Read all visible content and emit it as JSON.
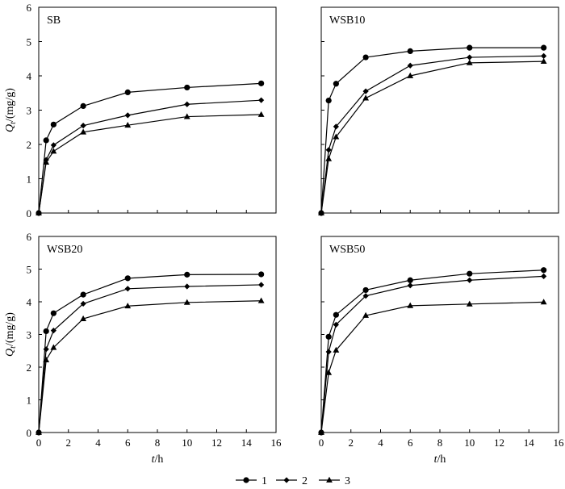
{
  "chart_data": [
    {
      "type": "line",
      "title": "SB",
      "xlabel": "",
      "ylabel": "Q_t/(mg/g)",
      "xlim": [
        0,
        16
      ],
      "ylim": [
        0,
        6
      ],
      "x_ticks": [],
      "y_ticks": [
        0,
        1,
        2,
        3,
        4,
        5,
        6
      ],
      "x": [
        0,
        0.5,
        1,
        3,
        6,
        10,
        15
      ],
      "series": [
        {
          "name": "1",
          "marker": "circle",
          "values": [
            0,
            2.12,
            2.58,
            3.12,
            3.52,
            3.66,
            3.78
          ]
        },
        {
          "name": "2",
          "marker": "diamond",
          "values": [
            0,
            1.55,
            1.98,
            2.55,
            2.85,
            3.17,
            3.29
          ]
        },
        {
          "name": "3",
          "marker": "triangle",
          "values": [
            0,
            1.48,
            1.8,
            2.36,
            2.56,
            2.81,
            2.87
          ]
        }
      ]
    },
    {
      "type": "line",
      "title": "WSB10",
      "xlabel": "",
      "ylabel": "",
      "xlim": [
        0,
        16
      ],
      "ylim": [
        0,
        6
      ],
      "x_ticks": [],
      "y_ticks": [],
      "x": [
        0,
        0.5,
        1,
        3,
        6,
        10,
        15
      ],
      "series": [
        {
          "name": "1",
          "marker": "circle",
          "values": [
            0,
            3.28,
            3.77,
            4.54,
            4.72,
            4.82,
            4.82
          ]
        },
        {
          "name": "2",
          "marker": "diamond",
          "values": [
            0,
            1.84,
            2.52,
            3.55,
            4.3,
            4.54,
            4.58
          ]
        },
        {
          "name": "3",
          "marker": "triangle",
          "values": [
            0,
            1.58,
            2.22,
            3.35,
            4.0,
            4.38,
            4.42
          ]
        }
      ]
    },
    {
      "type": "line",
      "title": "WSB20",
      "xlabel": "t/h",
      "ylabel": "Q_t/(mg/g)",
      "xlim": [
        0,
        16
      ],
      "ylim": [
        0,
        6
      ],
      "x_ticks": [
        0,
        2,
        4,
        6,
        8,
        10,
        12,
        14,
        16
      ],
      "y_ticks": [
        0,
        1,
        2,
        3,
        4,
        5,
        6
      ],
      "x": [
        0,
        0.5,
        1,
        3,
        6,
        10,
        15
      ],
      "series": [
        {
          "name": "1",
          "marker": "circle",
          "values": [
            0,
            3.1,
            3.65,
            4.22,
            4.72,
            4.83,
            4.84
          ]
        },
        {
          "name": "2",
          "marker": "diamond",
          "values": [
            0,
            2.55,
            3.12,
            3.94,
            4.4,
            4.47,
            4.52
          ]
        },
        {
          "name": "3",
          "marker": "triangle",
          "values": [
            0,
            2.22,
            2.6,
            3.48,
            3.87,
            3.98,
            4.03
          ]
        }
      ]
    },
    {
      "type": "line",
      "title": "WSB50",
      "xlabel": "t/h",
      "ylabel": "",
      "xlim": [
        0,
        16
      ],
      "ylim": [
        0,
        6
      ],
      "x_ticks": [
        0,
        2,
        4,
        6,
        8,
        10,
        12,
        14,
        16
      ],
      "y_ticks": [],
      "x": [
        0,
        0.5,
        1,
        3,
        6,
        10,
        15
      ],
      "series": [
        {
          "name": "1",
          "marker": "circle",
          "values": [
            0,
            2.93,
            3.6,
            4.36,
            4.66,
            4.86,
            4.97
          ]
        },
        {
          "name": "2",
          "marker": "diamond",
          "values": [
            0,
            2.47,
            3.3,
            4.18,
            4.5,
            4.66,
            4.78
          ]
        },
        {
          "name": "3",
          "marker": "triangle",
          "values": [
            0,
            1.83,
            2.52,
            3.58,
            3.88,
            3.93,
            3.99
          ]
        }
      ]
    }
  ],
  "legend": {
    "placement": "bottom-center",
    "entries": [
      {
        "label": "1",
        "marker": "circle"
      },
      {
        "label": "2",
        "marker": "diamond"
      },
      {
        "label": "3",
        "marker": "triangle"
      }
    ]
  }
}
